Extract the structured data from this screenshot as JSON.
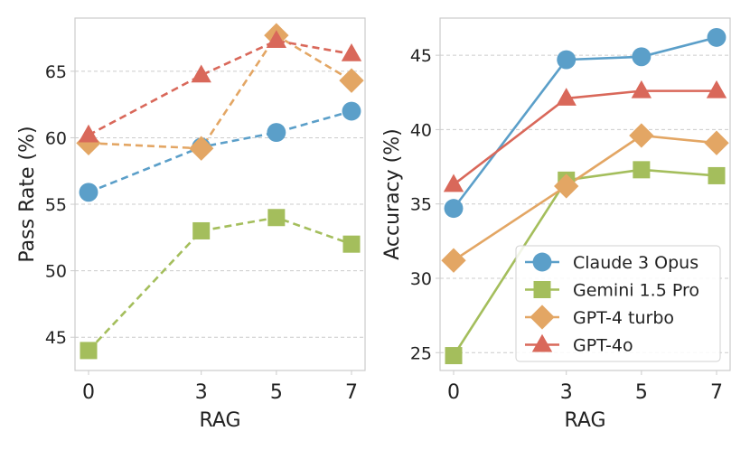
{
  "chart_data": [
    {
      "type": "line",
      "xlabel": "RAG",
      "ylabel": "Pass Rate (%)",
      "x": [
        0,
        3,
        5,
        7
      ],
      "ylim": [
        42.5,
        69
      ],
      "yticks": [
        45,
        50,
        55,
        60,
        65
      ],
      "line_style": "dashed",
      "grid": true,
      "legend": null,
      "series": [
        {
          "name": "Claude 3 Opus",
          "color": "#5b9fc9",
          "marker": "circle",
          "values": [
            55.9,
            59.3,
            60.4,
            62.0
          ]
        },
        {
          "name": "Gemini 1.5 Pro",
          "color": "#a4be5c",
          "marker": "square",
          "values": [
            44.0,
            53.0,
            54.0,
            52.0
          ]
        },
        {
          "name": "GPT-4 turbo",
          "color": "#e3a664",
          "marker": "diamond",
          "values": [
            59.6,
            59.2,
            67.7,
            64.3
          ]
        },
        {
          "name": "GPT-4o",
          "color": "#d9685a",
          "marker": "triangle",
          "values": [
            60.2,
            64.7,
            67.3,
            66.3
          ]
        }
      ]
    },
    {
      "type": "line",
      "xlabel": "RAG",
      "ylabel": "Accuracy (%)",
      "x": [
        0,
        3,
        5,
        7
      ],
      "ylim": [
        23.8,
        47.5
      ],
      "yticks": [
        25,
        30,
        35,
        40,
        45
      ],
      "line_style": "solid",
      "grid": true,
      "legend": "lower-right",
      "series": [
        {
          "name": "Claude 3 Opus",
          "color": "#5b9fc9",
          "marker": "circle",
          "values": [
            34.7,
            44.7,
            44.9,
            46.2
          ]
        },
        {
          "name": "Gemini 1.5 Pro",
          "color": "#a4be5c",
          "marker": "square",
          "values": [
            24.8,
            36.6,
            37.3,
            36.9
          ]
        },
        {
          "name": "GPT-4 turbo",
          "color": "#e3a664",
          "marker": "diamond",
          "values": [
            31.2,
            36.2,
            39.6,
            39.1
          ]
        },
        {
          "name": "GPT-4o",
          "color": "#d9685a",
          "marker": "triangle",
          "values": [
            36.3,
            42.1,
            42.6,
            42.6
          ]
        }
      ]
    }
  ]
}
